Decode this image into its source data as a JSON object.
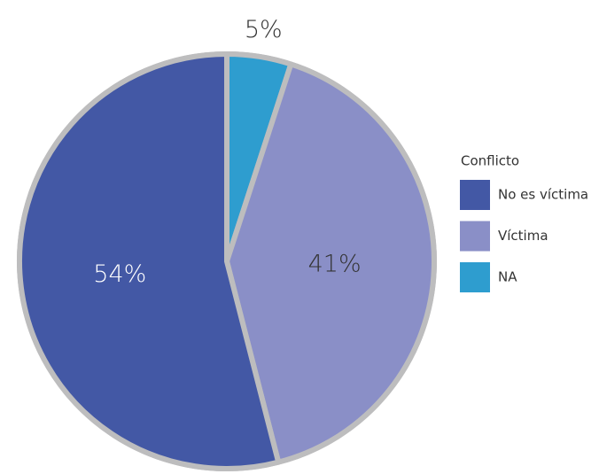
{
  "chart_data": {
    "type": "pie",
    "categories": [
      "No es víctima",
      "Víctima",
      "NA"
    ],
    "values": [
      54,
      41,
      5
    ],
    "value_labels": [
      "54%",
      "41%",
      "5%"
    ],
    "colors": [
      "#4358a5",
      "#8a8fc7",
      "#2e9dcf"
    ],
    "legend_title": "Conflicto",
    "legend": "right"
  }
}
